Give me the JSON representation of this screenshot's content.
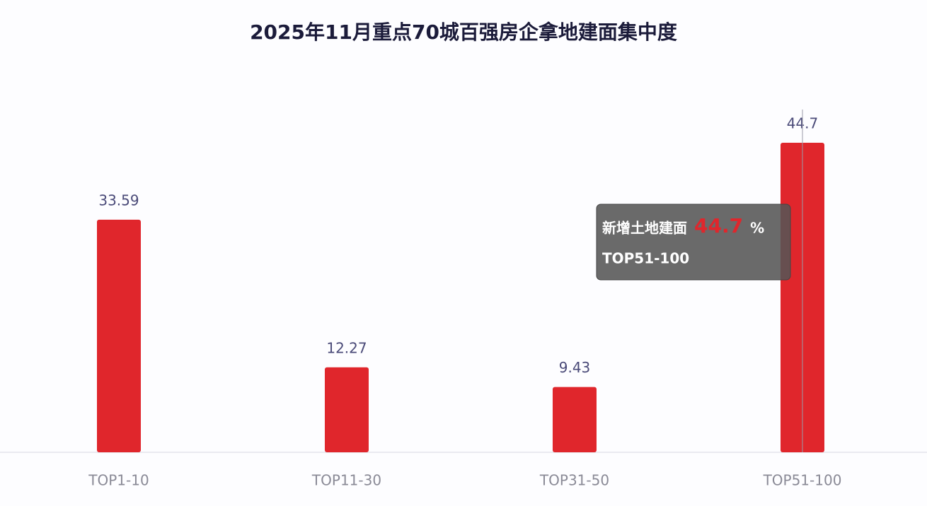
{
  "chart_data": {
    "type": "bar",
    "title": "2025年11月重点70城百强房企拿地建面集中度",
    "categories": [
      "TOP1-10",
      "TOP11-30",
      "TOP31-50",
      "TOP51-100"
    ],
    "series": [
      {
        "name": "新增土地建面",
        "color": "#e0262c",
        "values": [
          33.59,
          12.27,
          9.43,
          44.7
        ]
      }
    ],
    "ylim": [
      0,
      50
    ],
    "tooltip": {
      "index": 3,
      "unit": "%"
    }
  }
}
